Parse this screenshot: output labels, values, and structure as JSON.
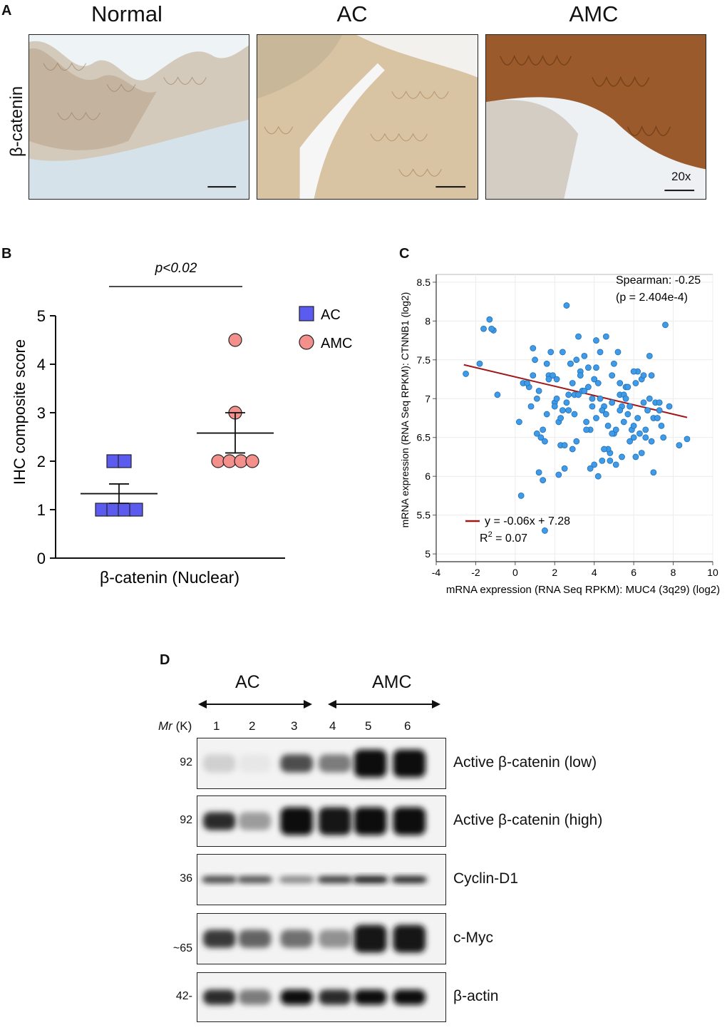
{
  "panelA": {
    "letter": "A",
    "row_label": "β-catenin",
    "columns": [
      "Normal",
      "AC",
      "AMC"
    ],
    "magnification": "20x"
  },
  "panelB": {
    "letter": "B",
    "pvalue": "p<0.02",
    "legend": [
      {
        "name": "AC",
        "color": "#5b5bf0"
      },
      {
        "name": "AMC",
        "color": "#f4908c"
      }
    ]
  },
  "panelC": {
    "letter": "C",
    "spearman": "Spearman: -0.25",
    "pvalue": "(p = 2.404e-4)",
    "equation": "y = -0.06x + 7.28",
    "r2_label": "R",
    "r2_sup": "2",
    "r2_value": " = 0.07"
  },
  "panelD": {
    "letter": "D",
    "group_ac": "AC",
    "group_amc": "AMC",
    "mr_label": "Mr",
    "k_label": "(K)",
    "lanes": [
      "1",
      "2",
      "3",
      "4",
      "5",
      "6"
    ],
    "blots": [
      {
        "label": "Active β-catenin (low)",
        "mw": "92",
        "intensity": [
          0.12,
          0.02,
          0.7,
          0.5,
          0.98,
          0.98
        ]
      },
      {
        "label": "Active β-catenin (high)",
        "mw": "92",
        "intensity": [
          0.85,
          0.35,
          1.0,
          0.95,
          1.0,
          1.0
        ]
      },
      {
        "label": "Cyclin-D1",
        "mw": "36",
        "intensity": [
          0.75,
          0.7,
          0.45,
          0.8,
          0.95,
          0.9
        ]
      },
      {
        "label": "c-Myc",
        "mw": "~65",
        "intensity": [
          0.8,
          0.6,
          0.55,
          0.4,
          0.95,
          0.95
        ]
      },
      {
        "label": "β-actin",
        "mw": "42-",
        "intensity": [
          0.85,
          0.5,
          1.0,
          0.85,
          1.0,
          1.0
        ]
      }
    ]
  },
  "chart_data": [
    {
      "type": "scatter",
      "title": "β-catenin (Nuclear)",
      "xlabel": "β-catenin (Nuclear)",
      "ylabel": "IHC composite score",
      "ylim": [
        0,
        5
      ],
      "yticks": [
        "0",
        "1",
        "2",
        "3",
        "4",
        "5"
      ],
      "series": [
        {
          "name": "AC",
          "values": [
            2,
            2,
            1,
            1,
            1,
            1
          ],
          "mean": 1.33,
          "sem_upper": 1.53,
          "sem_lower": 1.13
        },
        {
          "name": "AMC",
          "values": [
            4.5,
            3,
            2,
            2,
            2,
            2
          ],
          "mean": 2.58,
          "sem_upper": 3.0,
          "sem_lower": 2.17
        }
      ]
    },
    {
      "type": "scatter",
      "xlabel": "mRNA expression (RNA Seq RPKM): MUC4 (3q29) (log2)",
      "ylabel": "mRNA expression (RNA Seq RPKM): CTNNB1 (log2)",
      "xlim": [
        -4,
        10
      ],
      "ylim": [
        4.9,
        8.6
      ],
      "xticks": [
        "-4",
        "-2",
        "0",
        "2",
        "4",
        "6",
        "8",
        "10"
      ],
      "yticks": [
        "5",
        "5.5",
        "6",
        "6.5",
        "7",
        "7.5",
        "8",
        "8.5"
      ],
      "regression": {
        "slope": -0.06,
        "intercept": 7.28,
        "x_range": [
          -2.6,
          8.7
        ]
      },
      "x": [
        -2.5,
        -1.8,
        -1.6,
        -1.3,
        -1.1,
        -0.9,
        -1.2,
        0.4,
        0.9,
        1.2,
        1.6,
        2.0,
        2.4,
        2.6,
        2.9,
        3.3,
        3.7,
        4.1,
        4.5,
        4.9,
        5.3,
        5.7,
        6.1,
        6.5,
        6.9,
        7.3,
        7.8,
        0.2,
        0.7,
        1.1,
        1.4,
        1.7,
        2.1,
        2.3,
        2.7,
        3.0,
        3.4,
        3.8,
        4.2,
        4.6,
        5.0,
        5.4,
        5.8,
        6.2,
        6.6,
        7.0,
        7.4,
        0.8,
        1.3,
        1.9,
        2.5,
        3.1,
        3.6,
        4.3,
        4.8,
        5.5,
        6.0,
        6.7,
        7.5,
        8.3,
        1.0,
        1.5,
        2.2,
        2.8,
        3.2,
        3.9,
        4.4,
        5.1,
        5.6,
        6.3,
        6.8,
        0.6,
        1.6,
        2.4,
        3.5,
        4.0,
        4.7,
        5.2,
        5.9,
        6.4,
        7.1,
        1.8,
        2.9,
        3.3,
        4.1,
        4.9,
        5.7,
        6.9,
        2.0,
        3.7,
        4.5,
        5.3,
        6.1,
        7.2,
        1.2,
        2.6,
        4.0,
        5.0,
        6.0,
        8.7,
        3.0,
        4.6,
        5.8,
        7.6,
        2.2,
        3.4,
        4.8,
        6.4,
        1.4,
        3.8,
        5.4,
        0.9,
        2.7,
        4.3,
        6.6,
        3.1,
        5.1,
        2.3,
        4.2,
        6.2,
        1.7,
        3.6,
        5.6,
        2.5,
        4.4,
        6.8,
        3.2,
        5.5,
        0.3,
        7.0,
        1.1,
        2.8,
        4.7,
        6.5,
        3.9,
        5.3,
        2.1,
        4.9,
        7.3,
        3.5,
        6.0,
        1.5,
        4.1
      ],
      "y": [
        7.32,
        7.45,
        7.9,
        8.02,
        7.88,
        7.05,
        7.9,
        7.2,
        7.3,
        7.1,
        7.45,
        6.95,
        7.6,
        8.2,
        7.2,
        7.35,
        7.15,
        7.4,
        6.9,
        7.3,
        7.05,
        6.8,
        7.2,
        6.95,
        7.3,
        6.85,
        6.9,
        6.7,
        7.15,
        6.55,
        6.6,
        7.3,
        7.0,
        6.4,
        7.05,
        6.8,
        7.1,
        6.6,
        7.2,
        6.8,
        6.55,
        6.9,
        6.45,
        6.75,
        6.6,
        6.75,
        6.65,
        6.9,
        6.5,
        7.3,
        6.1,
        7.5,
        6.7,
        7.0,
        6.3,
        7.05,
        6.5,
        6.85,
        6.5,
        6.4,
        7.5,
        6.45,
        6.7,
        7.45,
        7.8,
        6.9,
        6.2,
        6.6,
        7.15,
        6.55,
        7.0,
        7.2,
        6.8,
        6.85,
        7.55,
        7.25,
        6.35,
        7.6,
        6.6,
        7.25,
        6.95,
        7.6,
        6.35,
        7.3,
        7.75,
        6.95,
        7.15,
        6.45,
        6.9,
        7.4,
        6.35,
        7.2,
        6.25,
        6.75,
        6.05,
        6.95,
        6.15,
        7.45,
        6.65,
        6.48,
        7.05,
        7.8,
        6.9,
        7.95,
        6.02,
        7.1,
        6.2,
        6.3,
        5.95,
        6.1,
        6.25,
        7.65,
        6.85,
        7.6,
        6.5,
        6.45,
        6.15,
        6.75,
        6.0,
        7.35,
        7.25,
        6.6,
        7.0,
        6.4,
        6.85,
        7.55,
        7.05,
        6.7,
        5.75,
        6.05,
        7.0,
        7.45,
        6.65,
        7.3,
        7.0,
        6.85,
        7.25,
        6.55,
        6.95,
        7.1,
        7.35,
        5.3,
        6.75
      ],
      "annotations": [
        "Spearman: -0.25",
        "(p = 2.404e-4)",
        "y = -0.06x + 7.28",
        "R2 = 0.07"
      ]
    }
  ]
}
